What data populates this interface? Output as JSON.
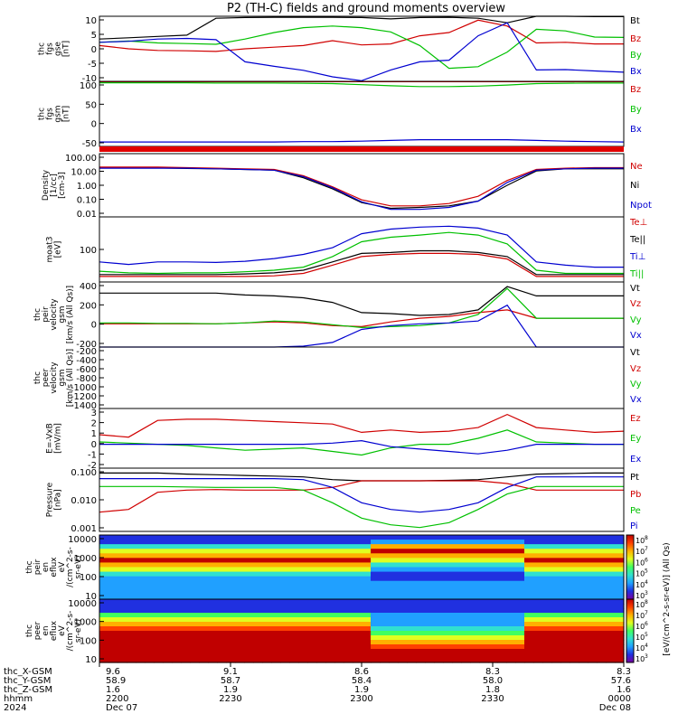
{
  "title": "P2 (TH-C) fields and ground moments overview",
  "chart_data": [
    {
      "type": "line",
      "id": "fgs-gse",
      "ylabel": [
        "thc",
        "fgs",
        "gse",
        "[nT]"
      ],
      "yticks": [
        "10",
        "5",
        "0",
        "-5",
        "-10"
      ],
      "ylim": [
        -10,
        10
      ],
      "legend": [
        "Bt",
        "Bz",
        "By",
        "Bx"
      ],
      "series": [
        {
          "name": "Bt",
          "color": "#000000",
          "y": [
            3,
            3.4,
            3.8,
            4.2,
            9.4,
            9.6,
            9.7,
            9.7,
            9.7,
            9.6,
            9.2,
            9.6,
            9.7,
            9.4,
            8,
            10,
            10,
            9.9,
            9.9
          ]
        },
        {
          "name": "Bz",
          "color": "#d00000",
          "y": [
            1,
            0,
            -0.5,
            -0.6,
            -0.8,
            0,
            0.5,
            1,
            2.5,
            1.2,
            1.5,
            4,
            5,
            8.8,
            7,
            1.8,
            2,
            1.5,
            1.5
          ]
        },
        {
          "name": "By",
          "color": "#00c000",
          "y": [
            2,
            2.4,
            1.8,
            1.6,
            1.4,
            3,
            5,
            6.5,
            7,
            6.5,
            5.2,
            1,
            -6,
            -5.5,
            -1,
            6,
            5.5,
            3.6,
            3.5
          ]
        },
        {
          "name": "Bx",
          "color": "#0000d0",
          "y": [
            2,
            2.3,
            3,
            3.2,
            2.8,
            -4,
            -5.4,
            -6.6,
            -8.6,
            -9.8,
            -6.5,
            -4,
            -3.5,
            4,
            8,
            -6.5,
            -6.4,
            -6.8,
            -7.2
          ]
        }
      ]
    },
    {
      "type": "line",
      "id": "fgs-gsm",
      "ylabel": [
        "thc",
        "fgs",
        "gsm",
        "[nT]"
      ],
      "yticks": [
        "100",
        "50",
        "0",
        "-50"
      ],
      "ylim": [
        -75,
        100
      ],
      "legend": [
        "Bz",
        "By",
        "Bx"
      ],
      "series": [
        {
          "name": "Bz",
          "color": "#d00000",
          "y": [
            99,
            99,
            99,
            99,
            99,
            99,
            99,
            99,
            99,
            99,
            99,
            99,
            99,
            99,
            99,
            99,
            99,
            99,
            99
          ]
        },
        {
          "name": "By",
          "color": "#00c000",
          "y": [
            96,
            96,
            96,
            96,
            95.5,
            95.5,
            95.5,
            95,
            94,
            91,
            88,
            86,
            86,
            87,
            90,
            94,
            95,
            95.5,
            95.5
          ]
        },
        {
          "name": "Bx",
          "color": "#0000d0",
          "y": [
            -63,
            -63,
            -63,
            -63,
            -63,
            -63,
            -63,
            -62,
            -62,
            -61,
            -59,
            -57,
            -57,
            -57,
            -57,
            -59,
            -61,
            -62,
            -63
          ]
        }
      ]
    },
    {
      "type": "line",
      "id": "density",
      "ylabel": [
        "Density",
        "[1/cc]",
        "[cm-3]"
      ],
      "yticks": [
        "100.00",
        "10.00",
        "1.00",
        "0.10",
        "0.01"
      ],
      "scale": "log",
      "ylim": [
        0.01,
        100
      ],
      "legend": [
        "Ne",
        "Ni",
        "Npot"
      ],
      "series": [
        {
          "name": "Ni",
          "color": "#000000",
          "y": [
            13,
            13,
            12.5,
            11.5,
            11,
            10,
            9,
            3,
            0.6,
            0.08,
            0.035,
            0.04,
            0.05,
            0.1,
            1,
            8,
            11,
            11,
            11
          ]
        },
        {
          "name": "Ne",
          "color": "#d00000",
          "y": [
            14,
            14,
            14,
            13,
            12,
            11,
            10,
            4,
            0.8,
            0.12,
            0.05,
            0.05,
            0.07,
            0.2,
            2,
            10,
            12,
            13,
            13
          ]
        },
        {
          "name": "Npot",
          "color": "#0000d0",
          "y": [
            12,
            12,
            12,
            12,
            11,
            10,
            9,
            3.5,
            0.7,
            0.09,
            0.03,
            0.03,
            0.04,
            0.1,
            1.5,
            9,
            11,
            12,
            12
          ]
        }
      ]
    },
    {
      "type": "line",
      "id": "temperature",
      "ylabel": [
        "moat3",
        "[eV]"
      ],
      "yticks": [
        "100"
      ],
      "scale": "log",
      "ylim": [
        20,
        700
      ],
      "legend": [
        "Te⊥",
        "Te||",
        "Ti⊥",
        "Ti||"
      ],
      "series": [
        {
          "name": "Ti⊥",
          "color": "#0000d0",
          "y": [
            60,
            52,
            60,
            60,
            58,
            62,
            72,
            90,
            130,
            280,
            360,
            400,
            420,
            380,
            260,
            60,
            50,
            45,
            45
          ]
        },
        {
          "name": "Ti||",
          "color": "#00c000",
          "y": [
            36,
            33,
            32,
            33,
            33,
            35,
            38,
            45,
            80,
            180,
            230,
            260,
            300,
            260,
            160,
            38,
            32,
            32,
            32
          ]
        },
        {
          "name": "Te||",
          "color": "#000000",
          "y": [
            30,
            30,
            30,
            30,
            30,
            31,
            33,
            38,
            60,
            95,
            100,
            110,
            110,
            100,
            80,
            30,
            30,
            30,
            30
          ]
        },
        {
          "name": "Te⊥",
          "color": "#d00000",
          "y": [
            27,
            27,
            27,
            27,
            27,
            27,
            28,
            32,
            50,
            80,
            90,
            95,
            95,
            90,
            70,
            27,
            27,
            27,
            27
          ]
        }
      ]
    },
    {
      "type": "line",
      "id": "velocity-all",
      "ylabel": [
        "thc",
        "peir",
        "velocity",
        "gsm",
        "[km/s (All Qs)]"
      ],
      "yticks": [
        "400",
        "200",
        "0",
        "-200"
      ],
      "ylim": [
        -250,
        450
      ],
      "legend": [
        "Vt",
        "Vz",
        "Vy",
        "Vx"
      ],
      "series": [
        {
          "name": "Vt",
          "color": "#000000",
          "y": [
            330,
            330,
            330,
            330,
            330,
            310,
            300,
            280,
            230,
            120,
            110,
            90,
            100,
            150,
            400,
            300,
            300,
            300,
            300
          ]
        },
        {
          "name": "Vz",
          "color": "#d00000",
          "y": [
            0,
            0,
            0,
            0,
            0,
            10,
            20,
            10,
            -20,
            -30,
            20,
            60,
            80,
            120,
            150,
            60,
            60,
            60,
            60
          ]
        },
        {
          "name": "Vy",
          "color": "#00c000",
          "y": [
            10,
            10,
            5,
            5,
            0,
            10,
            30,
            20,
            -10,
            -40,
            -30,
            -20,
            10,
            100,
            380,
            60,
            60,
            60,
            60
          ]
        },
        {
          "name": "Vx",
          "color": "#0000d0",
          "y": [
            -250,
            -250,
            -250,
            -250,
            -250,
            -250,
            -250,
            -240,
            -200,
            -60,
            -20,
            0,
            10,
            30,
            200,
            -250,
            -250,
            -250,
            -250
          ]
        }
      ]
    },
    {
      "type": "line",
      "id": "velocity-peer",
      "ylabel": [
        "thc",
        "peer",
        "velocity",
        "gsm",
        "[km/s (All Qs)]"
      ],
      "yticks": [
        "-200",
        "-400",
        "-600",
        "-800",
        "-1000",
        "-1200",
        "-1400"
      ],
      "ylim": [
        -1500,
        -100
      ],
      "legend": [
        "Vt",
        "Vz",
        "Vy",
        "Vx"
      ],
      "series": []
    },
    {
      "type": "line",
      "id": "efield",
      "ylabel": [
        "E=-VxB",
        "[mV/m]"
      ],
      "yticks": [
        "3",
        "2",
        "1",
        "0",
        "-1",
        "-2"
      ],
      "ylim": [
        -2,
        3
      ],
      "legend": [
        "Ez",
        "Ey",
        "Ex"
      ],
      "series": [
        {
          "name": "Ez",
          "color": "#d00000",
          "y": [
            0.8,
            0.6,
            2.0,
            2.1,
            2.1,
            2.0,
            1.9,
            1.8,
            1.7,
            1.0,
            1.2,
            1.0,
            1.1,
            1.4,
            2.5,
            1.4,
            1.2,
            1.0,
            1.1
          ]
        },
        {
          "name": "Ey",
          "color": "#00c000",
          "y": [
            0.2,
            0.1,
            0,
            -0.1,
            -0.3,
            -0.5,
            -0.4,
            -0.3,
            -0.6,
            -0.9,
            -0.3,
            0,
            0,
            0.5,
            1.2,
            0.2,
            0.1,
            0,
            0
          ]
        },
        {
          "name": "Ex",
          "color": "#0000d0",
          "y": [
            0,
            0,
            0,
            0,
            0,
            0,
            0,
            0,
            0.1,
            0.3,
            -0.2,
            -0.4,
            -0.6,
            -0.8,
            -0.5,
            0,
            0,
            0,
            0
          ]
        }
      ]
    },
    {
      "type": "line",
      "id": "pressure",
      "ylabel": [
        "Pressure",
        "[nPa]"
      ],
      "yticks": [
        "0.100",
        "0.010",
        "0.001"
      ],
      "scale": "log",
      "ylim": [
        0.0002,
        0.15
      ],
      "legend": [
        "Pt",
        "Pb",
        "Pe",
        "Pi"
      ],
      "series": [
        {
          "name": "Pt",
          "color": "#000000",
          "y": [
            0.09,
            0.09,
            0.09,
            0.08,
            0.075,
            0.07,
            0.065,
            0.06,
            0.045,
            0.04,
            0.04,
            0.04,
            0.042,
            0.045,
            0.06,
            0.08,
            0.085,
            0.09,
            0.09
          ]
        },
        {
          "name": "Pb",
          "color": "#d00000",
          "y": [
            0.0015,
            0.002,
            0.012,
            0.015,
            0.016,
            0.015,
            0.015,
            0.015,
            0.02,
            0.04,
            0.04,
            0.04,
            0.04,
            0.04,
            0.03,
            0.015,
            0.015,
            0.015,
            0.015
          ]
        },
        {
          "name": "Pe",
          "color": "#00c000",
          "y": [
            0.022,
            0.022,
            0.022,
            0.021,
            0.02,
            0.02,
            0.02,
            0.015,
            0.004,
            0.0008,
            0.0004,
            0.0003,
            0.0005,
            0.002,
            0.01,
            0.022,
            0.022,
            0.022,
            0.022
          ]
        },
        {
          "name": "Pi",
          "color": "#0000d0",
          "y": [
            0.05,
            0.05,
            0.05,
            0.05,
            0.05,
            0.05,
            0.05,
            0.045,
            0.02,
            0.004,
            0.002,
            0.0015,
            0.002,
            0.004,
            0.02,
            0.06,
            0.06,
            0.06,
            0.06
          ]
        }
      ]
    },
    {
      "type": "heatmap",
      "id": "peir-eflux",
      "ylabel": [
        "thc",
        "peir",
        "en",
        "eflux",
        "eV",
        "/(cm^2-s-",
        "sr-eV)"
      ],
      "yticks": [
        "10000",
        "1000",
        "100",
        "10"
      ],
      "scale": "log"
    },
    {
      "type": "heatmap",
      "id": "peer-eflux",
      "ylabel": [
        "thc",
        "peer",
        "en",
        "eflux",
        "eV",
        "/(cm^2-s-",
        "sr-eV)"
      ],
      "yticks": [
        "10000",
        "1000",
        "100",
        "10"
      ],
      "scale": "log"
    }
  ],
  "colorbar": {
    "label": "[eV/(cm^2-s-sr-eV)] (All Qs)",
    "upper_ticks": [
      "10",
      "10",
      "10",
      "10",
      "10",
      "10"
    ],
    "upper_exponents": [
      "8",
      "7",
      "6",
      "5",
      "4",
      "3"
    ],
    "lower_ticks": [
      "10",
      "10",
      "10",
      "10",
      "10",
      "10"
    ],
    "lower_exponents": [
      "8",
      "7",
      "6",
      "5",
      "4",
      "3"
    ]
  },
  "x_axis": {
    "row_labels": [
      "thc_X-GSM",
      "thc_Y-GSM",
      "thc_Z-GSM",
      "hhmm",
      "2024"
    ],
    "columns": [
      {
        "X": "9.6",
        "Y": "58.9",
        "Z": "1.6",
        "hhmm": "2200",
        "date": "Dec 07"
      },
      {
        "X": "9.1",
        "Y": "58.7",
        "Z": "1.9",
        "hhmm": "2230",
        "date": ""
      },
      {
        "X": "8.6",
        "Y": "58.4",
        "Z": "1.9",
        "hhmm": "2300",
        "date": ""
      },
      {
        "X": "8.3",
        "Y": "58.0",
        "Z": "1.8",
        "hhmm": "2330",
        "date": ""
      },
      {
        "X": "8.3",
        "Y": "57.6",
        "Z": "1.6",
        "hhmm": "0000",
        "date": "Dec 08"
      }
    ]
  }
}
